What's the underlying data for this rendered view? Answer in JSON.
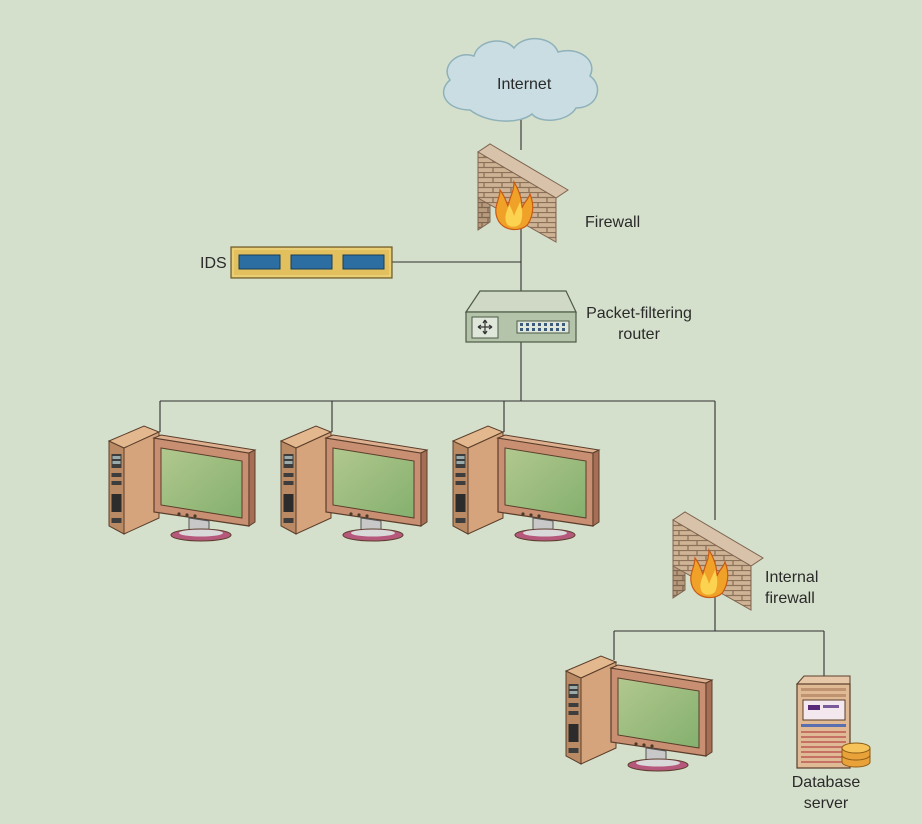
{
  "diagram": {
    "nodes": {
      "internet": {
        "label": "Internet",
        "icon": "cloud-icon"
      },
      "firewall": {
        "label": "Firewall",
        "icon": "brick-firewall-icon"
      },
      "ids": {
        "label": "IDS",
        "icon": "ids-appliance-icon"
      },
      "router": {
        "label_line1": "Packet-filtering",
        "label_line2": "router",
        "icon": "router-icon"
      },
      "workstations": {
        "count": 3,
        "icon": "desktop-computer-icon"
      },
      "internal_firewall": {
        "label_line1": "Internal",
        "label_line2": "firewall",
        "icon": "brick-firewall-icon"
      },
      "internal_workstation": {
        "icon": "desktop-computer-icon"
      },
      "database_server": {
        "label_line1": "Database",
        "label_line2": "server",
        "icon": "database-server-icon"
      }
    },
    "colors": {
      "background": "#d5e0cc",
      "line": "#2f2f2f",
      "cloud": "#c9dde2",
      "brick": "#c8aa8a",
      "computer": "#d5a47c",
      "screen": "#9ec07f",
      "ids": "#e2c05d",
      "ids_slot": "#2d6ea2"
    }
  }
}
